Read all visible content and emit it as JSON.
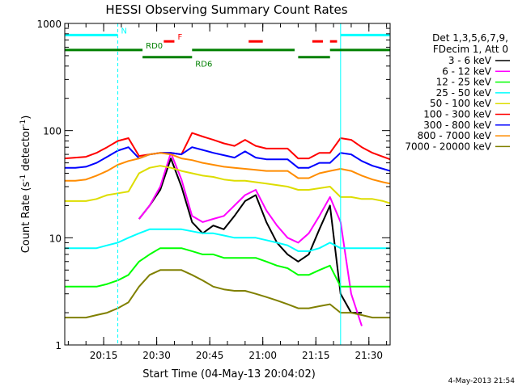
{
  "chart_data": {
    "type": "line",
    "title": "HESSI Observing Summary Count Rates",
    "xlabel": "Start Time (04-May-13 20:04:02)",
    "ylabel_main": "Count Rate (s",
    "ylabel_sup1": "-1",
    "ylabel_mid": " detector",
    "ylabel_sup2": "-1",
    "ylabel_end": ")",
    "y_scale": "log",
    "ylim": [
      1,
      1000
    ],
    "xlim_minutes": [
      0,
      92
    ],
    "x_ticks": [
      {
        "label": "20:15",
        "minute": 11
      },
      {
        "label": "20:30",
        "minute": 26
      },
      {
        "label": "20:45",
        "minute": 41
      },
      {
        "label": "21:00",
        "minute": 56
      },
      {
        "label": "21:15",
        "minute": 71
      },
      {
        "label": "21:30",
        "minute": 86
      }
    ],
    "y_ticks": [
      {
        "label": "1",
        "value": 1
      },
      {
        "label": "10",
        "value": 10
      },
      {
        "label": "100",
        "value": 100
      },
      {
        "label": "1000",
        "value": 1000
      }
    ],
    "flag_lines": [
      {
        "label": "N",
        "color": "#00ffff",
        "row_value": 780,
        "segments": [
          [
            0,
            15
          ],
          [
            78,
            92
          ]
        ]
      },
      {
        "label": "F",
        "color": "#ff0000",
        "row_value": 680,
        "segments": [
          [
            28,
            31
          ],
          [
            52,
            56
          ],
          [
            70,
            73
          ],
          [
            75,
            77
          ]
        ]
      },
      {
        "label": "RD0",
        "color": "#008000",
        "row_value": 565,
        "segments": [
          [
            0,
            22
          ],
          [
            36,
            65
          ],
          [
            75,
            92
          ]
        ]
      },
      {
        "label": "RD6",
        "color": "#008000",
        "row_value": 485,
        "segments": [
          [
            22,
            36
          ],
          [
            66,
            75
          ]
        ]
      }
    ],
    "vertical_markers": [
      {
        "minute": 15,
        "color": "#00ffff",
        "style": "dashed"
      },
      {
        "minute": 78,
        "color": "#00ffff",
        "style": "solid"
      },
      {
        "minute": 92,
        "color": "#00ffff",
        "style": "dashed"
      }
    ],
    "legend_header": [
      "Det 1,3,5,6,7,9,",
      "FDecim 1, Att 0"
    ],
    "series": [
      {
        "name": "3 - 6 keV",
        "color": "#000000",
        "x": [
          0,
          3,
          6,
          9,
          12,
          15,
          18,
          21,
          24,
          27,
          30,
          33,
          36,
          39,
          42,
          45,
          48,
          51,
          54,
          57,
          60,
          63,
          66,
          69,
          72,
          75,
          78,
          81,
          84,
          87,
          90,
          92
        ],
        "y": [
          null,
          null,
          null,
          null,
          null,
          null,
          null,
          15,
          20,
          28,
          55,
          30,
          14,
          11,
          13,
          12,
          16,
          22,
          25,
          14,
          9,
          7,
          6,
          7,
          12,
          20,
          3,
          2,
          2,
          null,
          null,
          null
        ]
      },
      {
        "name": "6 - 12 keV",
        "color": "#ff00ff",
        "x": [
          0,
          3,
          6,
          9,
          12,
          15,
          18,
          21,
          24,
          27,
          30,
          33,
          36,
          39,
          42,
          45,
          48,
          51,
          54,
          57,
          60,
          63,
          66,
          69,
          72,
          75,
          78,
          81,
          84,
          87,
          90,
          92
        ],
        "y": [
          null,
          null,
          null,
          null,
          null,
          null,
          null,
          15,
          20,
          30,
          62,
          35,
          16,
          14,
          15,
          16,
          20,
          25,
          28,
          18,
          13,
          10,
          9,
          11,
          16,
          24,
          14,
          3,
          1.5,
          null,
          null,
          null
        ]
      },
      {
        "name": "12 - 25 keV",
        "color": "#00ff00",
        "x": [
          0,
          3,
          6,
          9,
          12,
          15,
          18,
          21,
          24,
          27,
          30,
          33,
          36,
          39,
          42,
          45,
          48,
          51,
          54,
          57,
          60,
          63,
          66,
          69,
          72,
          75,
          78,
          81,
          84,
          87,
          90,
          92
        ],
        "y": [
          3.5,
          3.5,
          3.5,
          3.5,
          3.7,
          4,
          4.5,
          6,
          7,
          8,
          8,
          8,
          7.5,
          7,
          7,
          6.5,
          6.5,
          6.5,
          6.5,
          6,
          5.5,
          5.2,
          4.5,
          4.5,
          5,
          5.5,
          3.5,
          3.5,
          3.5,
          3.5,
          3.5,
          3.5
        ]
      },
      {
        "name": "25 - 50 keV",
        "color": "#00ffff",
        "x": [
          0,
          3,
          6,
          9,
          12,
          15,
          18,
          21,
          24,
          27,
          30,
          33,
          36,
          39,
          42,
          45,
          48,
          51,
          54,
          57,
          60,
          63,
          66,
          69,
          72,
          75,
          78,
          81,
          84,
          87,
          90,
          92
        ],
        "y": [
          8,
          8,
          8,
          8,
          8.5,
          9,
          10,
          11,
          12,
          12,
          12,
          12,
          11.5,
          11,
          11,
          10.5,
          10,
          10,
          10,
          9.5,
          9,
          8.5,
          7.5,
          7.5,
          8,
          9,
          8,
          8,
          8,
          8,
          8,
          8
        ]
      },
      {
        "name": "50 - 100 keV",
        "color": "#dddd00",
        "x": [
          0,
          3,
          6,
          9,
          12,
          15,
          18,
          21,
          24,
          27,
          30,
          33,
          36,
          39,
          42,
          45,
          48,
          51,
          54,
          57,
          60,
          63,
          66,
          69,
          72,
          75,
          78,
          81,
          84,
          87,
          90,
          92
        ],
        "y": [
          22,
          22,
          22,
          23,
          25,
          26,
          27,
          40,
          45,
          47,
          45,
          42,
          40,
          38,
          37,
          35,
          34,
          34,
          33,
          32,
          31,
          30,
          28,
          28,
          29,
          30,
          24,
          24,
          23,
          23,
          22,
          21
        ]
      },
      {
        "name": "100 - 300 keV",
        "color": "#ff0000",
        "x": [
          0,
          3,
          6,
          9,
          12,
          15,
          18,
          21,
          24,
          27,
          30,
          33,
          36,
          39,
          42,
          45,
          48,
          51,
          54,
          57,
          60,
          63,
          66,
          69,
          72,
          75,
          78,
          81,
          84,
          87,
          90,
          92
        ],
        "y": [
          55,
          56,
          57,
          62,
          70,
          80,
          85,
          58,
          60,
          62,
          62,
          60,
          95,
          88,
          82,
          76,
          72,
          82,
          72,
          68,
          68,
          68,
          55,
          55,
          62,
          62,
          85,
          82,
          70,
          62,
          57,
          54
        ]
      },
      {
        "name": "300 - 800 keV",
        "color": "#0000ff",
        "x": [
          0,
          3,
          6,
          9,
          12,
          15,
          18,
          21,
          24,
          27,
          30,
          33,
          36,
          39,
          42,
          45,
          48,
          51,
          54,
          57,
          60,
          63,
          66,
          69,
          72,
          75,
          78,
          81,
          84,
          87,
          90,
          92
        ],
        "y": [
          45,
          45,
          46,
          50,
          57,
          65,
          70,
          55,
          60,
          62,
          62,
          60,
          70,
          66,
          62,
          59,
          56,
          64,
          56,
          54,
          54,
          54,
          45,
          45,
          50,
          50,
          62,
          60,
          52,
          47,
          44,
          42
        ]
      },
      {
        "name": "800 - 7000 keV",
        "color": "#ff8c00",
        "x": [
          0,
          3,
          6,
          9,
          12,
          15,
          18,
          21,
          24,
          27,
          30,
          33,
          36,
          39,
          42,
          45,
          48,
          51,
          54,
          57,
          60,
          63,
          66,
          69,
          72,
          75,
          78,
          81,
          84,
          87,
          90,
          92
        ],
        "y": [
          34,
          34,
          35,
          38,
          42,
          48,
          52,
          55,
          60,
          62,
          60,
          55,
          53,
          50,
          48,
          46,
          45,
          44,
          43,
          42,
          42,
          42,
          36,
          36,
          40,
          42,
          44,
          42,
          38,
          35,
          33,
          32
        ]
      },
      {
        "name": "7000 - 20000 keV",
        "color": "#808000",
        "x": [
          0,
          3,
          6,
          9,
          12,
          15,
          18,
          21,
          24,
          27,
          30,
          33,
          36,
          39,
          42,
          45,
          48,
          51,
          54,
          57,
          60,
          63,
          66,
          69,
          72,
          75,
          78,
          81,
          84,
          87,
          90,
          92
        ],
        "y": [
          1.8,
          1.8,
          1.8,
          1.9,
          2,
          2.2,
          2.5,
          3.5,
          4.5,
          5,
          5,
          5,
          4.5,
          4,
          3.5,
          3.3,
          3.2,
          3.2,
          3,
          2.8,
          2.6,
          2.4,
          2.2,
          2.2,
          2.3,
          2.4,
          2,
          2,
          1.9,
          1.8,
          1.8,
          1.8
        ]
      }
    ],
    "footer_date": "4-May-2013 21:54",
    "grid": false,
    "legend_position": "right"
  }
}
